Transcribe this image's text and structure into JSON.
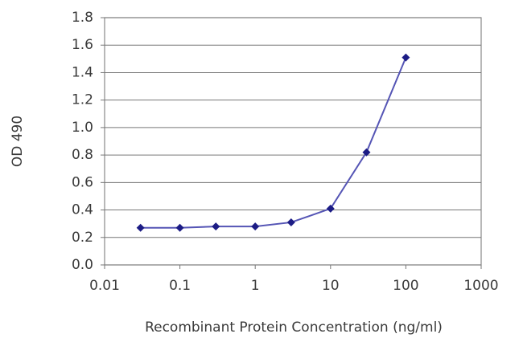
{
  "chart_data": {
    "type": "line",
    "x_label": "Recombinant Protein Concentration (ng/ml)",
    "y_label": "OD 490",
    "x_scale": "log",
    "x": [
      0.03,
      0.1,
      0.3,
      1,
      3,
      10,
      30,
      100
    ],
    "series": [
      {
        "color": "#5555b5",
        "marker_color": "#1c1c85",
        "values": [
          0.27,
          0.27,
          0.28,
          0.28,
          0.31,
          0.41,
          0.82,
          1.51
        ]
      }
    ],
    "xlim": [
      0.01,
      1000
    ],
    "xticks": [
      0.01,
      0.1,
      1,
      10,
      100,
      1000
    ],
    "ylim": [
      0,
      1.8
    ],
    "yticks": [
      {
        "value": 0,
        "label": "0.0"
      },
      0.2,
      0.4,
      0.6,
      0.8,
      {
        "value": 1,
        "label": "1.0"
      },
      1.2,
      1.4,
      1.6,
      1.8
    ],
    "grid": true
  }
}
